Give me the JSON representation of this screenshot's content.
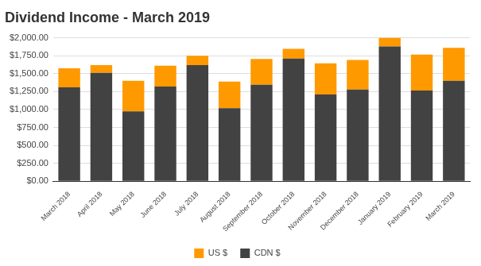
{
  "chart_data": {
    "type": "bar",
    "title": "Dividend Income - March 2019",
    "categories": [
      "March 2018",
      "April 2018",
      "May 2018",
      "June 2018",
      "July 2018",
      "August 2018",
      "September 2018",
      "October 2018",
      "November 2018",
      "December 2018",
      "January 2019",
      "February 2019",
      "March 2019"
    ],
    "series": [
      {
        "name": "CDN $",
        "color": "#424242",
        "values": [
          1310,
          1510,
          975,
          1320,
          1620,
          1020,
          1345,
          1710,
          1210,
          1280,
          1880,
          1265,
          1400
        ]
      },
      {
        "name": "US $",
        "color": "#ff9900",
        "values": [
          265,
          110,
          425,
          290,
          130,
          370,
          360,
          135,
          435,
          410,
          120,
          500,
          460
        ]
      }
    ],
    "stacked": true,
    "ylim": [
      0,
      2000
    ],
    "yticks": [
      {
        "value": 0,
        "label": "$0.00"
      },
      {
        "value": 250,
        "label": "$250.00"
      },
      {
        "value": 500,
        "label": "$500.00"
      },
      {
        "value": 750,
        "label": "$750.00"
      },
      {
        "value": 1000,
        "label": "$1,000.00"
      },
      {
        "value": 1250,
        "label": "$1,250.00"
      },
      {
        "value": 1500,
        "label": "$1,500.00"
      },
      {
        "value": 1750,
        "label": "$1,750.00"
      },
      {
        "value": 2000,
        "label": "$2,000.00"
      }
    ],
    "grid": true,
    "legend": "bottom"
  }
}
